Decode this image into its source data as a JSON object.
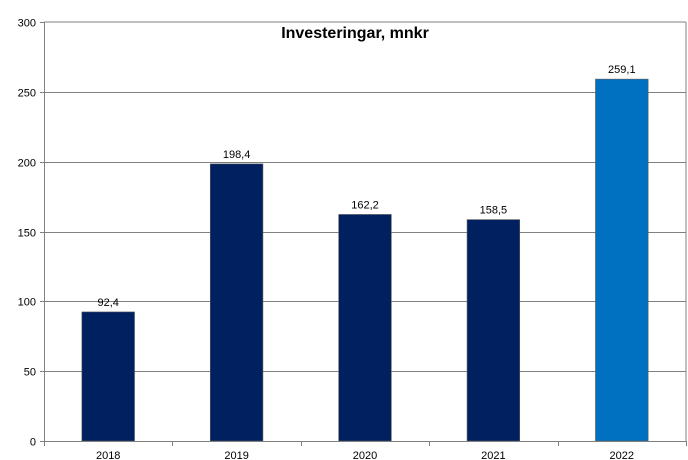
{
  "chart_data": {
    "type": "bar",
    "title": "Investeringar, mnkr",
    "xlabel": "",
    "ylabel": "",
    "categories": [
      "2018",
      "2019",
      "2020",
      "2021",
      "2022"
    ],
    "values": [
      92.4,
      198.4,
      162.2,
      158.5,
      259.1
    ],
    "data_labels": [
      "92,4",
      "198,4",
      "162,2",
      "158,5",
      "259,1"
    ],
    "yticks": [
      0,
      50,
      100,
      150,
      200,
      250,
      300
    ],
    "ylim": [
      0,
      300
    ],
    "grid": true,
    "legend": "none",
    "colors": {
      "bar": "#002060",
      "highlight_bar": "#0070C0",
      "grid": "#808080",
      "axis": "#808080"
    },
    "highlight_index": 4
  }
}
